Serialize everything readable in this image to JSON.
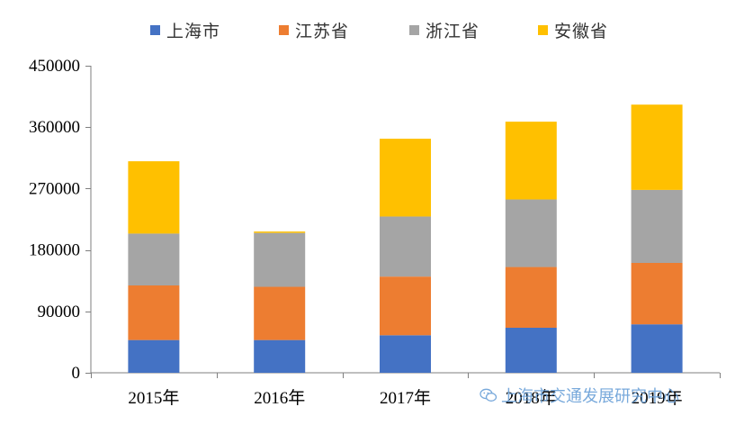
{
  "chart_data": {
    "type": "bar",
    "stacked": true,
    "title": "",
    "xlabel": "",
    "ylabel": "",
    "categories": [
      "2015年",
      "2016年",
      "2017年",
      "2018年",
      "2019年"
    ],
    "series": [
      {
        "name": "上海市",
        "color": "#4472C4",
        "values": [
          48000,
          48000,
          55000,
          66000,
          71000
        ]
      },
      {
        "name": "江苏省",
        "color": "#ED7D31",
        "values": [
          80000,
          78000,
          86000,
          89000,
          90000
        ]
      },
      {
        "name": "浙江省",
        "color": "#A5A5A5",
        "values": [
          76000,
          79000,
          88000,
          99000,
          107000
        ]
      },
      {
        "name": "安徽省",
        "color": "#FFC000",
        "values": [
          106000,
          2000,
          114000,
          114000,
          125000
        ]
      }
    ],
    "ylim": [
      0,
      450000
    ],
    "yticks": [
      0,
      90000,
      180000,
      270000,
      360000,
      450000
    ],
    "legend_position": "top"
  },
  "watermark": {
    "text": "上海市交通发展研究中心",
    "icon": "wechat-icon"
  }
}
